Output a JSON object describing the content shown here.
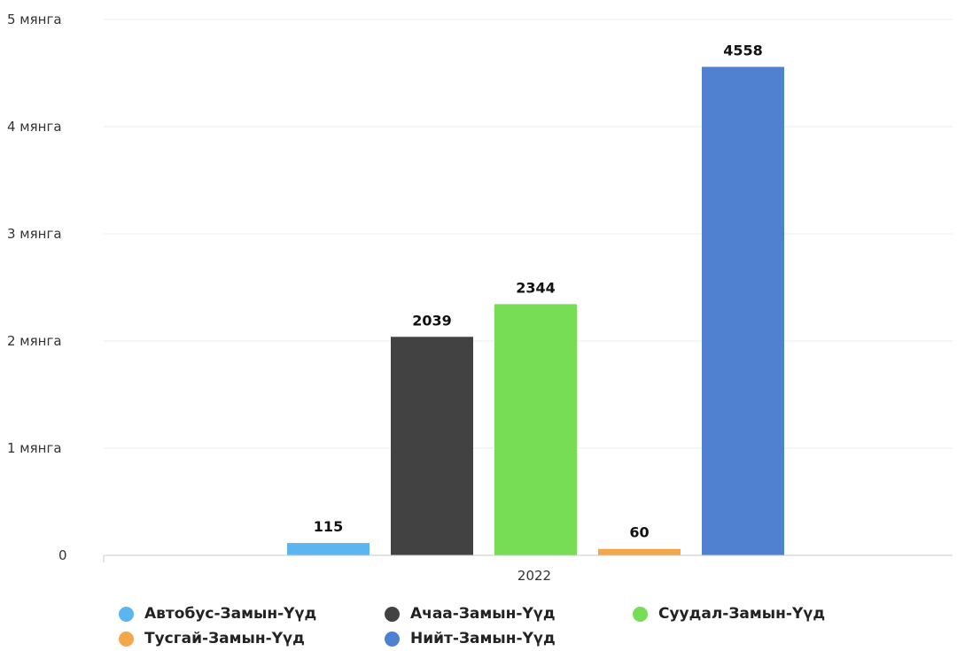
{
  "chart_data": {
    "type": "bar",
    "categories": [
      "2022"
    ],
    "series": [
      {
        "name": "Автобус-Замын-Үүд",
        "values": [
          115
        ],
        "color": "#5bb5f0"
      },
      {
        "name": "Ачаа-Замын-Үүд",
        "values": [
          2039
        ],
        "color": "#424242"
      },
      {
        "name": "Суудал-Замын-Үүд",
        "values": [
          2344
        ],
        "color": "#77dd55"
      },
      {
        "name": "Тусгай-Замын-Үүд",
        "values": [
          60
        ],
        "color": "#f2a84a"
      },
      {
        "name": "Нийт-Замын-Үүд",
        "values": [
          4558
        ],
        "color": "#4f81d0"
      }
    ],
    "ylim": [
      0,
      5000
    ],
    "yticks": [
      0,
      1000,
      2000,
      3000,
      4000,
      5000
    ],
    "ytick_labels": [
      "0",
      "1 мянга",
      "2 мянга",
      "3 мянга",
      "4 мянга",
      "5 мянга"
    ],
    "xlabel": "",
    "ylabel": "",
    "title": "",
    "grid": true,
    "legend_position": "bottom",
    "data_labels": true
  }
}
